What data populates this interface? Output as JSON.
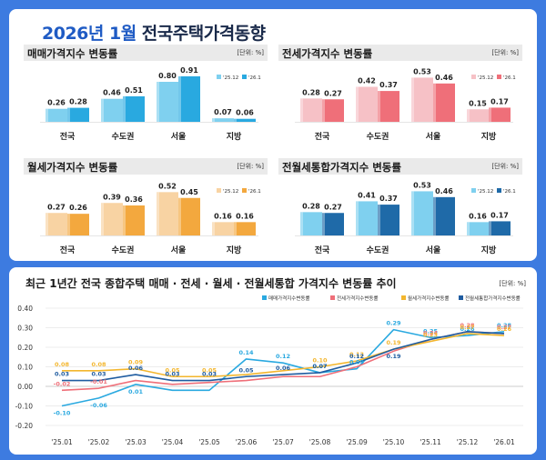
{
  "header": {
    "title_prefix": "2026년 1월",
    "title_suffix": " 전국주택가격동향"
  },
  "chart_data": [
    {
      "type": "bar",
      "title": "매매가격지수 변동률",
      "unit": "[단위: %]",
      "categories": [
        "전국",
        "수도권",
        "서울",
        "지방"
      ],
      "series": [
        {
          "name": "'25.12",
          "values": [
            0.26,
            0.46,
            0.8,
            0.07
          ],
          "color": "#7fd0ef"
        },
        {
          "name": "'26.1",
          "values": [
            0.28,
            0.51,
            0.91,
            0.06
          ],
          "color": "#29a9e0"
        }
      ],
      "ylim": [
        0,
        1.0
      ]
    },
    {
      "type": "bar",
      "title": "전세가격지수 변동률",
      "unit": "[단위: %]",
      "categories": [
        "전국",
        "수도권",
        "서울",
        "지방"
      ],
      "series": [
        {
          "name": "'25.12",
          "values": [
            0.28,
            0.42,
            0.53,
            0.15
          ],
          "color": "#f6c1c6"
        },
        {
          "name": "'26.1",
          "values": [
            0.27,
            0.37,
            0.46,
            0.17
          ],
          "color": "#ef6f79"
        }
      ],
      "ylim": [
        0,
        0.6
      ]
    },
    {
      "type": "bar",
      "title": "월세가격지수 변동률",
      "unit": "[단위: %]",
      "categories": [
        "전국",
        "수도권",
        "서울",
        "지방"
      ],
      "series": [
        {
          "name": "'25.12",
          "values": [
            0.27,
            0.39,
            0.52,
            0.16
          ],
          "color": "#f8d3a3"
        },
        {
          "name": "'26.1",
          "values": [
            0.26,
            0.36,
            0.45,
            0.16
          ],
          "color": "#f3a83e"
        }
      ],
      "ylim": [
        0,
        0.6
      ]
    },
    {
      "type": "bar",
      "title": "전월세통합가격지수 변동률",
      "unit": "[단위: %]",
      "categories": [
        "전국",
        "수도권",
        "서울",
        "지방"
      ],
      "series": [
        {
          "name": "'25.12",
          "values": [
            0.28,
            0.41,
            0.53,
            0.16
          ],
          "color": "#7fd0ef"
        },
        {
          "name": "'26.1",
          "values": [
            0.27,
            0.37,
            0.46,
            0.17
          ],
          "color": "#1f6aa8"
        }
      ],
      "ylim": [
        0,
        0.6
      ]
    },
    {
      "type": "line",
      "title": "최근 1년간 전국 종합주택 매매 · 전세 · 월세 · 전월세통합 가격지수 변동률 추이",
      "unit": "[단위: %]",
      "x": [
        "'25.01",
        "'25.02",
        "'25.03",
        "'25.04",
        "'25.05",
        "'25.06",
        "'25.07",
        "'25.08",
        "'25.09",
        "'25.10",
        "'25.11",
        "'25.12",
        "'26.01"
      ],
      "ylim": [
        -0.2,
        0.4
      ],
      "yticks": [
        "-0.20",
        "-0.10",
        "0.00",
        "0.10",
        "0.20",
        "0.30",
        "0.40"
      ],
      "series": [
        {
          "name": "매매가격지수변동률",
          "color": "#2aa9e0",
          "values": [
            -0.1,
            -0.06,
            0.01,
            -0.02,
            -0.02,
            0.14,
            0.12,
            0.07,
            0.09,
            0.29,
            0.25,
            0.26,
            0.28
          ],
          "labels": [
            "-0.10",
            "-0.06",
            "0.01",
            "",
            "",
            "0.14",
            "0.12",
            "0.07",
            "0.09",
            "0.29",
            "0.25",
            "0.26",
            "0.28"
          ]
        },
        {
          "name": "전세가격지수변동률",
          "color": "#ef6f79",
          "values": [
            -0.02,
            -0.01,
            0.03,
            0.01,
            0.02,
            0.03,
            0.05,
            0.05,
            0.1,
            0.18,
            0.24,
            0.28,
            0.27
          ],
          "labels": [
            "-0.02",
            "-0.01",
            "",
            "",
            "",
            "",
            "",
            "",
            "",
            "",
            "0.24",
            "0.28",
            "0.27"
          ]
        },
        {
          "name": "월세가격지수변동률",
          "color": "#f3b62e",
          "values": [
            0.08,
            0.08,
            0.09,
            0.05,
            0.05,
            0.06,
            0.08,
            0.1,
            0.13,
            0.19,
            0.23,
            0.27,
            0.26
          ],
          "labels": [
            "0.08",
            "0.08",
            "0.09",
            "0.05",
            "0.05",
            "",
            "",
            "0.10",
            "0.13",
            "0.19",
            "0.23",
            "0.27",
            "0.26"
          ]
        },
        {
          "name": "전월세통합가격지수변동률",
          "color": "#1f5ca0",
          "values": [
            0.03,
            0.03,
            0.06,
            0.03,
            0.03,
            0.05,
            0.06,
            0.07,
            0.12,
            0.19,
            0.24,
            0.28,
            0.27
          ],
          "labels": [
            "0.03",
            "0.03",
            "0.06",
            "0.03",
            "0.03",
            "0.05",
            "0.06",
            "0.07",
            "0.12",
            "0.19",
            "",
            "",
            ""
          ]
        }
      ]
    }
  ]
}
